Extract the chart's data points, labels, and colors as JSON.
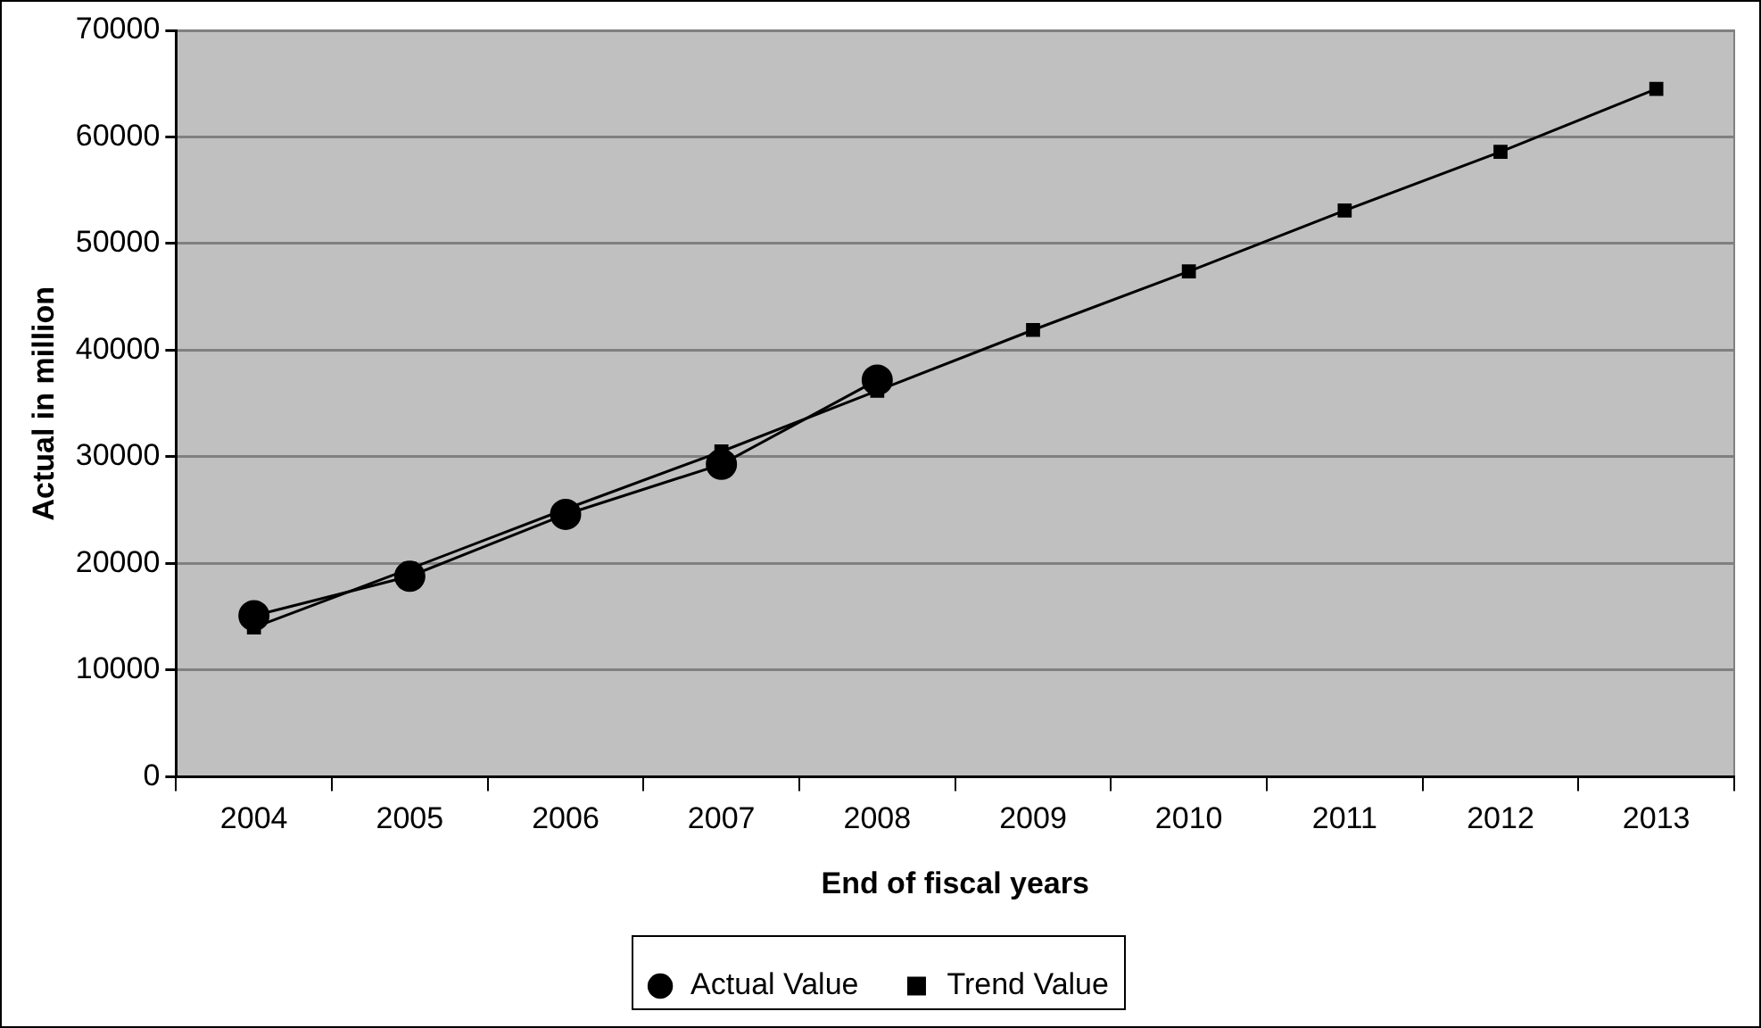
{
  "chart_data": {
    "type": "line",
    "xlabel": "End of fiscal years",
    "ylabel": "Actual in million",
    "categories": [
      "2004",
      "2005",
      "2006",
      "2007",
      "2008",
      "2009",
      "2010",
      "2011",
      "2012",
      "2013"
    ],
    "series": [
      {
        "name": "Actual Value",
        "color": "#000000",
        "marker": "circle",
        "values": [
          15100,
          18800,
          24600,
          29300,
          37200,
          null,
          null,
          null,
          null,
          null
        ]
      },
      {
        "name": "Trend Value",
        "color": "#000000",
        "marker": "square",
        "values": [
          14000,
          19500,
          25100,
          30500,
          36200,
          41900,
          47400,
          53100,
          58600,
          64500
        ]
      }
    ],
    "ylim": [
      0,
      70000
    ],
    "yticks": [
      0,
      10000,
      20000,
      30000,
      40000,
      50000,
      60000,
      70000
    ],
    "grid": "y",
    "legend": "bottom",
    "line_style": "solid"
  }
}
